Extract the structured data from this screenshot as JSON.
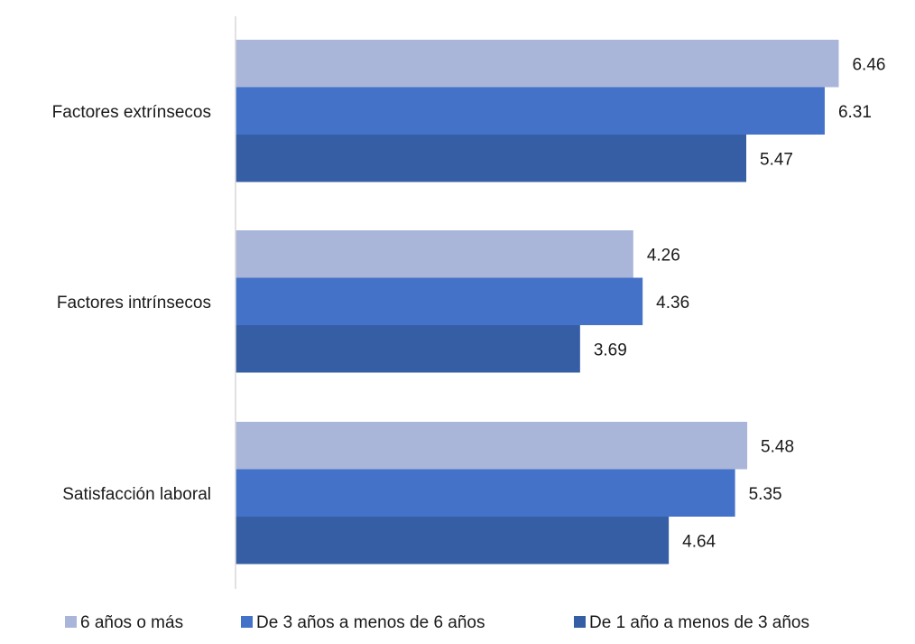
{
  "colors": {
    "series_1": "#a9b6da",
    "series_2": "#4472c8",
    "series_3": "#365ea4",
    "axis": "#d9d9d9"
  },
  "chart_data": {
    "type": "bar",
    "orientation": "horizontal",
    "categories": [
      "Factores extrínsecos",
      "Factores intrínsecos",
      "Satisfacción laboral"
    ],
    "series": [
      {
        "name": "6 años o más",
        "values": [
          6.46,
          4.26,
          5.48
        ]
      },
      {
        "name": "De 3 años a menos de 6 años",
        "values": [
          6.31,
          4.36,
          5.35
        ]
      },
      {
        "name": "De 1 año a menos de 3 años",
        "values": [
          5.47,
          3.69,
          4.64
        ]
      }
    ],
    "xlim": [
      0,
      6.9
    ],
    "grid": false,
    "legend": "bottom",
    "data_labels": true,
    "title": "",
    "xlabel": "",
    "ylabel": ""
  }
}
